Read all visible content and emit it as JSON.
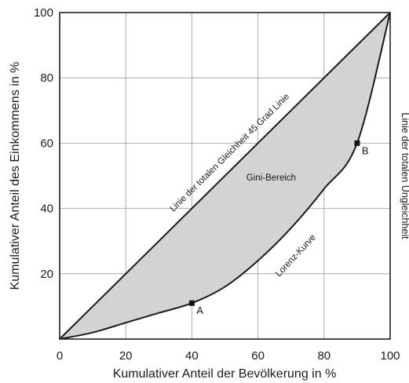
{
  "chart_data": {
    "type": "area",
    "xlabel": "Kumulativer Anteil der Bevölkerung in %",
    "ylabel": "Kumulativer Anteil des Einkommens in %",
    "right_axis_label": "Linie der totalen Ungleichheit",
    "xlim": [
      0,
      100
    ],
    "ylim": [
      0,
      100
    ],
    "x_ticks": [
      "0",
      "20",
      "40",
      "60",
      "80",
      "100"
    ],
    "y_ticks": [
      "20",
      "40",
      "60",
      "80",
      "100"
    ],
    "grid": true,
    "series": [
      {
        "name": "Linie der totalen Gleichheit 45 Grad Linie",
        "x": [
          0,
          100
        ],
        "y": [
          0,
          100
        ]
      },
      {
        "name": "Lorenz-Kurve",
        "x": [
          0,
          10,
          20,
          30,
          40,
          50,
          60,
          70,
          80,
          90,
          100
        ],
        "y": [
          0,
          2,
          5,
          8,
          11,
          16,
          24,
          34,
          46,
          60,
          100
        ]
      }
    ],
    "shaded_region": {
      "label": "Gini-Bereich",
      "color": "#d3d3d3"
    },
    "points": [
      {
        "label": "A",
        "x": 40,
        "y": 11
      },
      {
        "label": "B",
        "x": 90,
        "y": 60
      }
    ],
    "annotations": {
      "equality_line": "Linie der totalen Gleichheit 45 Grad Linie",
      "lorenz_curve": "Lorenz-Kurve",
      "gini_area": "Gini-Bereich"
    }
  }
}
